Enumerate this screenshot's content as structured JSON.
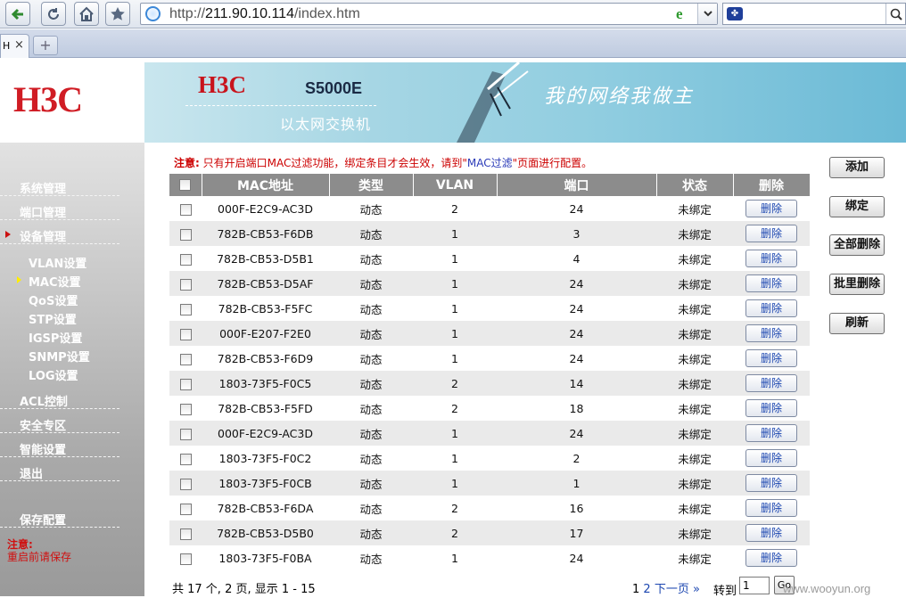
{
  "browser": {
    "url_scheme": "http://",
    "url_host": "211.90.10.114",
    "url_path": "/index.htm",
    "tab_title": "H",
    "tab_close": "×",
    "new_tab": "+"
  },
  "banner": {
    "brand": "H3C",
    "model": "S5000E",
    "subtitle": "以太网交换机",
    "slogan": "我的网络我做主"
  },
  "logo": "H3C",
  "sidebar": {
    "items": [
      {
        "label": "系统管理"
      },
      {
        "label": "端口管理"
      },
      {
        "label": "设备管理"
      }
    ],
    "sub_items": [
      {
        "label": "VLAN设置"
      },
      {
        "label": "MAC设置"
      },
      {
        "label": "QoS设置"
      },
      {
        "label": "STP设置"
      },
      {
        "label": "IGSP设置"
      },
      {
        "label": "SNMP设置"
      },
      {
        "label": "LOG设置"
      }
    ],
    "items2": [
      {
        "label": "ACL控制"
      },
      {
        "label": "安全专区"
      },
      {
        "label": "智能设置"
      },
      {
        "label": "退出"
      }
    ],
    "save": "保存配置",
    "note_title": "注意:",
    "note_text": "重启前请保存"
  },
  "notice": {
    "prefix": "注意:",
    "text1": "只有开启端口MAC过滤功能，绑定条目才会生效，请到\"",
    "link": "MAC过滤",
    "text2": "\"页面进行配置。"
  },
  "table": {
    "headers": [
      "MAC地址",
      "类型",
      "VLAN",
      "端口",
      "状态",
      "删除"
    ],
    "delete_label": "删除",
    "rows": [
      {
        "mac": "000F-E2C9-AC3D",
        "type": "动态",
        "vlan": "2",
        "port": "24",
        "status": "未绑定"
      },
      {
        "mac": "782B-CB53-F6DB",
        "type": "动态",
        "vlan": "1",
        "port": "3",
        "status": "未绑定"
      },
      {
        "mac": "782B-CB53-D5B1",
        "type": "动态",
        "vlan": "1",
        "port": "4",
        "status": "未绑定"
      },
      {
        "mac": "782B-CB53-D5AF",
        "type": "动态",
        "vlan": "1",
        "port": "24",
        "status": "未绑定"
      },
      {
        "mac": "782B-CB53-F5FC",
        "type": "动态",
        "vlan": "1",
        "port": "24",
        "status": "未绑定"
      },
      {
        "mac": "000F-E207-F2E0",
        "type": "动态",
        "vlan": "1",
        "port": "24",
        "status": "未绑定"
      },
      {
        "mac": "782B-CB53-F6D9",
        "type": "动态",
        "vlan": "1",
        "port": "24",
        "status": "未绑定"
      },
      {
        "mac": "1803-73F5-F0C5",
        "type": "动态",
        "vlan": "2",
        "port": "14",
        "status": "未绑定"
      },
      {
        "mac": "782B-CB53-F5FD",
        "type": "动态",
        "vlan": "2",
        "port": "18",
        "status": "未绑定"
      },
      {
        "mac": "000F-E2C9-AC3D",
        "type": "动态",
        "vlan": "1",
        "port": "24",
        "status": "未绑定"
      },
      {
        "mac": "1803-73F5-F0C2",
        "type": "动态",
        "vlan": "1",
        "port": "2",
        "status": "未绑定"
      },
      {
        "mac": "1803-73F5-F0CB",
        "type": "动态",
        "vlan": "1",
        "port": "1",
        "status": "未绑定"
      },
      {
        "mac": "782B-CB53-F6DA",
        "type": "动态",
        "vlan": "2",
        "port": "16",
        "status": "未绑定"
      },
      {
        "mac": "782B-CB53-D5B0",
        "type": "动态",
        "vlan": "2",
        "port": "17",
        "status": "未绑定"
      },
      {
        "mac": "1803-73F5-F0BA",
        "type": "动态",
        "vlan": "1",
        "port": "24",
        "status": "未绑定"
      }
    ]
  },
  "actions": {
    "add": "添加",
    "bind": "绑定",
    "delete_all": "全部删除",
    "batch_delete": "批里删除",
    "refresh": "刷新"
  },
  "pager": {
    "summary": "共 17 个, 2 页, 显示  1 - 15",
    "page1": "1",
    "page2": "2",
    "next": "下一页",
    "last": "»",
    "goto_label": "转到",
    "goto_value": "1",
    "go": "Go"
  },
  "watermark": "www.wooyun.org"
}
